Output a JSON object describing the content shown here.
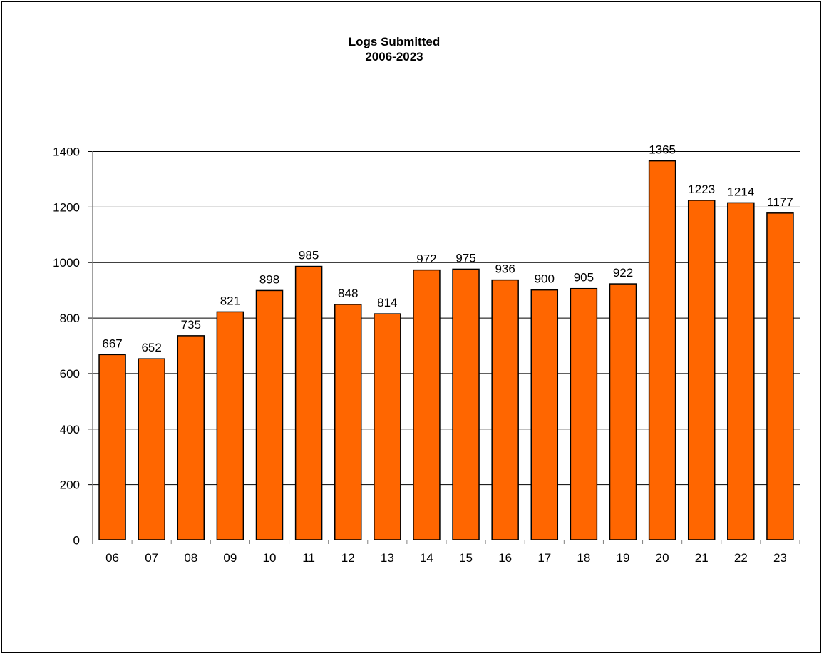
{
  "chart_data": {
    "type": "bar",
    "title": "Logs Submitted",
    "subtitle": "2006-2023",
    "categories": [
      "06",
      "07",
      "08",
      "09",
      "10",
      "11",
      "12",
      "13",
      "14",
      "15",
      "16",
      "17",
      "18",
      "19",
      "20",
      "21",
      "22",
      "23"
    ],
    "values": [
      667,
      652,
      735,
      821,
      898,
      985,
      848,
      814,
      972,
      975,
      936,
      900,
      905,
      922,
      1365,
      1223,
      1214,
      1177
    ],
    "xlabel": "",
    "ylabel": "",
    "ylim": [
      0,
      1400
    ],
    "yticks": [
      0,
      200,
      400,
      600,
      800,
      1000,
      1200,
      1400
    ],
    "grid": true,
    "legend": "none",
    "bar_color": "#FF6600",
    "data_labels": true
  }
}
